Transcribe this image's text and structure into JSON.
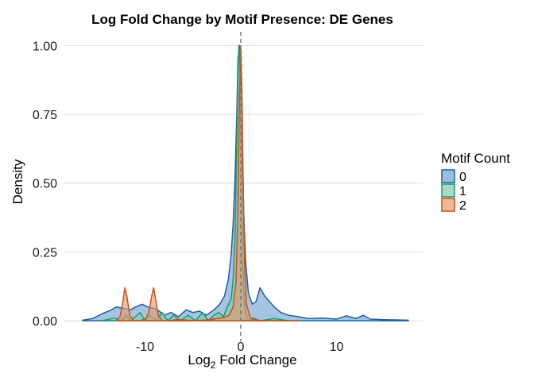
{
  "chart_data": {
    "type": "area",
    "title": "Log Fold Change by Motif Presence: DE Genes",
    "xlabel_main": "Log",
    "xlabel_sub": "2",
    "xlabel_rest": " Fold Change",
    "ylabel": "Density",
    "xlim": [
      -18.5,
      19
    ],
    "ylim": [
      -0.04,
      1.05
    ],
    "x_ticks": [
      -10,
      0,
      10
    ],
    "x_tick_labels": [
      "-10",
      "0",
      "10"
    ],
    "y_ticks": [
      0,
      0.25,
      0.5,
      0.75,
      1.0
    ],
    "y_tick_labels": [
      "0.00",
      "0.25",
      "0.50",
      "0.75",
      "1.00"
    ],
    "grid": true,
    "reference_line_x": 0,
    "legend": {
      "title": "Motif Count",
      "placement": "right"
    },
    "series": [
      {
        "name": "0",
        "fill": "#6f9fd0",
        "stroke": "#1f5fa0",
        "x": [
          -16.5,
          -15.5,
          -14.5,
          -13.5,
          -13,
          -12.2,
          -11.5,
          -11,
          -10.3,
          -10,
          -9.7,
          -9,
          -8.5,
          -8,
          -7.3,
          -6.5,
          -5.7,
          -5,
          -4.3,
          -3.6,
          -2.8,
          -2.2,
          -1.7,
          -1.3,
          -1.0,
          -0.8,
          -0.6,
          -0.4,
          -0.3,
          -0.15,
          0.0,
          0.15,
          0.3,
          0.5,
          0.8,
          1.2,
          1.6,
          2.0,
          2.5,
          3.0,
          3.5,
          4.2,
          5.0,
          6.0,
          7.0,
          8.5,
          10.0,
          11.0,
          12.0,
          12.8,
          13.5,
          15.0,
          17.5
        ],
        "y": [
          0.002,
          0.008,
          0.025,
          0.04,
          0.05,
          0.045,
          0.04,
          0.05,
          0.06,
          0.055,
          0.05,
          0.045,
          0.035,
          0.02,
          0.03,
          0.015,
          0.04,
          0.03,
          0.035,
          0.02,
          0.04,
          0.06,
          0.09,
          0.15,
          0.24,
          0.35,
          0.52,
          0.78,
          0.95,
          1.0,
          0.92,
          0.68,
          0.4,
          0.22,
          0.1,
          0.06,
          0.07,
          0.12,
          0.09,
          0.07,
          0.05,
          0.03,
          0.02,
          0.015,
          0.008,
          0.01,
          0.006,
          0.018,
          0.008,
          0.02,
          0.006,
          0.004,
          0.002
        ]
      },
      {
        "name": "1",
        "fill": "#82c9ad",
        "stroke": "#1a9a70",
        "x": [
          -14.5,
          -13.2,
          -12.5,
          -12.0,
          -11.5,
          -10.5,
          -10.0,
          -9.5,
          -8.8,
          -8.2,
          -7.6,
          -7.0,
          -6.3,
          -5.5,
          -4.7,
          -4.0,
          -3.4,
          -2.8,
          -2.3,
          -1.8,
          -1.4,
          -1.0,
          -0.8,
          -0.6,
          -0.45,
          -0.3,
          -0.2,
          -0.1,
          0.0,
          0.1,
          0.2,
          0.35,
          0.5,
          0.8,
          1.3,
          2.0,
          3.5,
          5.0,
          6.5
        ],
        "y": [
          0.0,
          0.01,
          0.0,
          0.02,
          0.0,
          0.03,
          0.0,
          0.02,
          0.0,
          0.03,
          0.0,
          0.02,
          0.0,
          0.02,
          0.0,
          0.03,
          0.0,
          0.02,
          0.03,
          0.015,
          0.05,
          0.08,
          0.15,
          0.3,
          0.6,
          0.9,
          1.0,
          0.95,
          0.75,
          0.45,
          0.2,
          0.08,
          0.03,
          0.0,
          0.01,
          0.0,
          0.008,
          0.0,
          0.0
        ]
      },
      {
        "name": "2",
        "fill": "#e59a6e",
        "stroke": "#c8521a",
        "x": [
          -13.0,
          -12.6,
          -12.3,
          -12.1,
          -11.9,
          -11.6,
          -11.2,
          -10.6,
          -10.0,
          -9.6,
          -9.3,
          -9.1,
          -8.9,
          -8.6,
          -8.2,
          -7.5,
          -6.5,
          -5.0,
          -3.5,
          -2.5,
          -1.8,
          -1.2,
          -0.8,
          -0.5,
          -0.3,
          -0.15,
          0.0,
          0.12,
          0.25,
          0.4,
          0.6,
          1.0,
          1.5,
          2.5,
          4.0,
          6.0
        ],
        "y": [
          0.0,
          0.015,
          0.07,
          0.12,
          0.09,
          0.02,
          0.0,
          0.0,
          0.005,
          0.03,
          0.09,
          0.12,
          0.08,
          0.02,
          0.0,
          0.0,
          0.005,
          0.0,
          0.003,
          0.008,
          0.012,
          0.02,
          0.05,
          0.14,
          0.4,
          0.8,
          1.0,
          0.85,
          0.5,
          0.2,
          0.06,
          0.01,
          0.003,
          0.0,
          0.0,
          0.0
        ]
      }
    ]
  }
}
